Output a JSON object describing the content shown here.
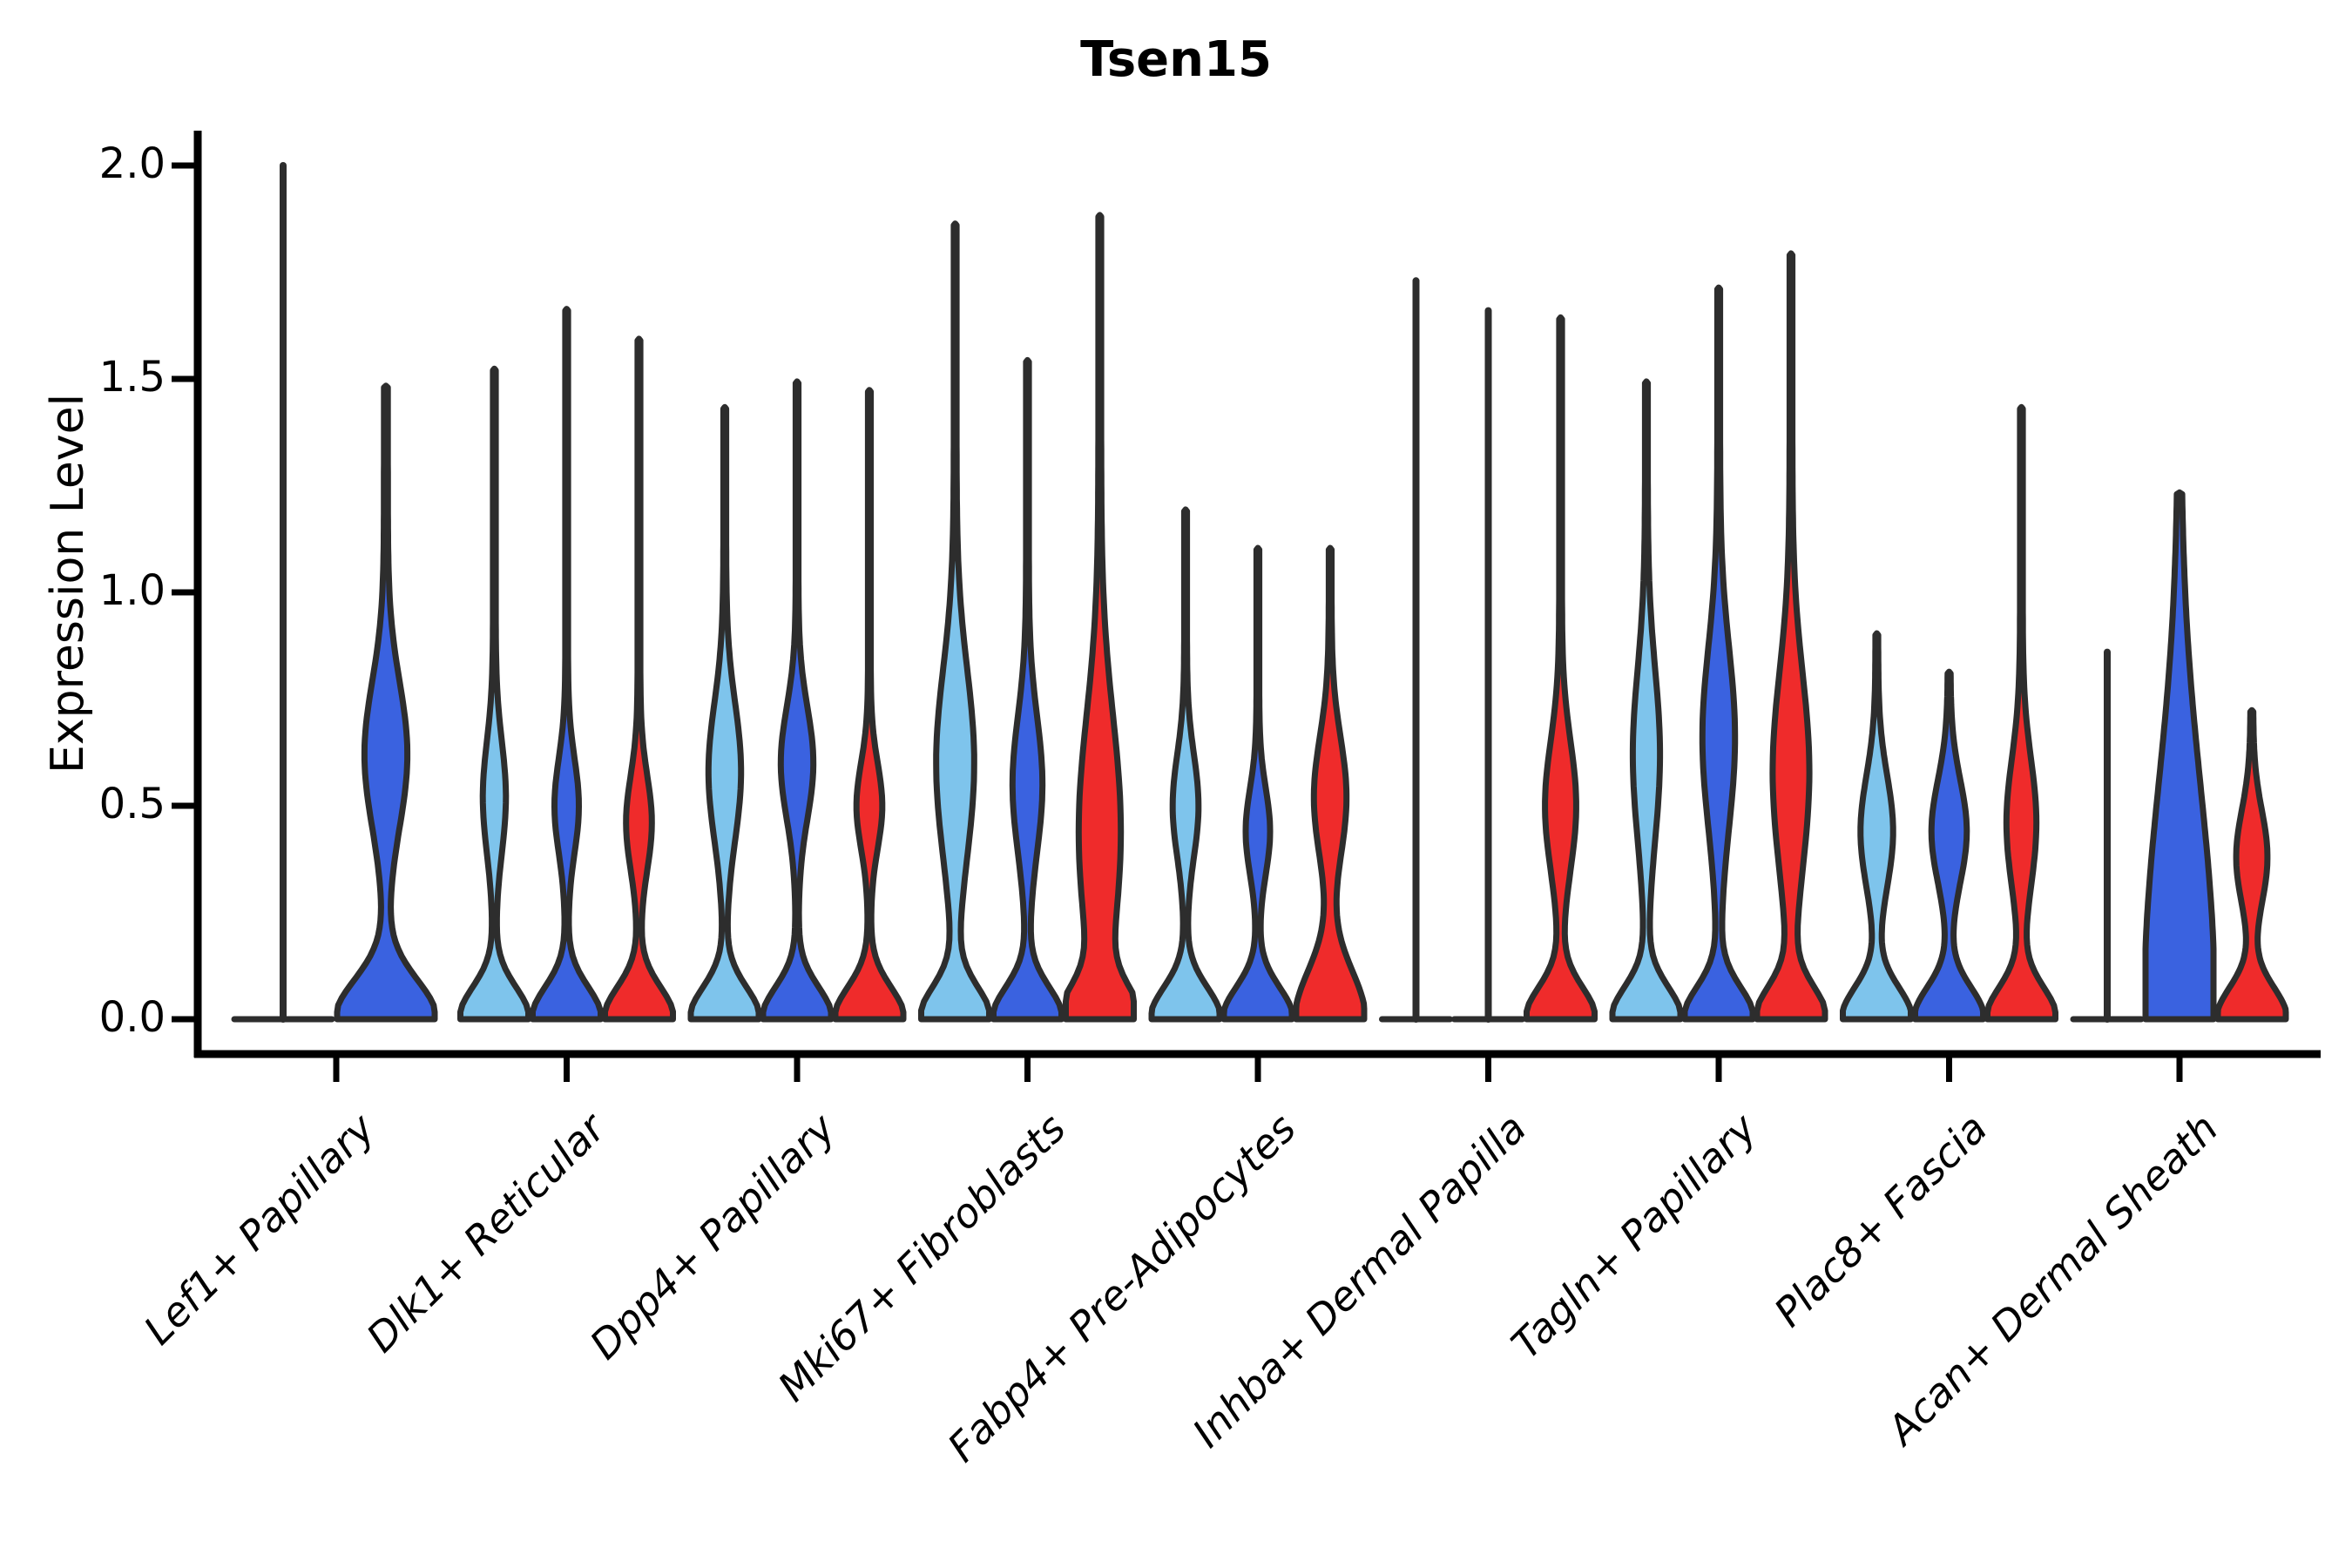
{
  "title": "Tsen15",
  "y_axis": {
    "label": "Expression Level",
    "ticks": [
      "0.0",
      "0.5",
      "1.0",
      "1.5",
      "2.0"
    ],
    "tick_values": [
      0.0,
      0.5,
      1.0,
      1.5,
      2.0
    ]
  },
  "x_axis": {
    "categories": [
      "Lef1+ Papillary",
      "Dlk1+ Reticular",
      "Dpp4+ Papillary",
      "Mki67+ Fibroblasts",
      "Fabp4+ Pre-Adipocytes",
      "Inhba+ Dermal Papilla",
      "Tagln+ Papillary",
      "Plac8+ Fascia",
      "Acan+ Dermal Sheath"
    ]
  },
  "colors": {
    "lightblue": "#7EC4EC",
    "blue": "#3A62E0",
    "red": "#EF2B2B",
    "outline": "#2D2D2D",
    "axis": "#000000"
  },
  "chart_data": {
    "type": "violin",
    "title": "Tsen15",
    "ylabel": "Expression Level",
    "ylim": [
      0,
      2.05
    ],
    "grid": false,
    "legend": "none",
    "categories": [
      "Lef1+ Papillary",
      "Dlk1+ Reticular",
      "Dpp4+ Papillary",
      "Mki67+ Fibroblasts",
      "Fabp4+ Pre-Adipocytes",
      "Inhba+ Dermal Papilla",
      "Tagln+ Papillary",
      "Plac8+ Fascia",
      "Acan+ Dermal Sheath"
    ],
    "groups": [
      {
        "category": "Lef1+ Papillary",
        "violins": [
          {
            "color": "lightblue",
            "shape": "collapsed",
            "max": 2.0,
            "offset": -61,
            "half": 56
          },
          {
            "color": "blue",
            "shape": "normal",
            "max": 1.48,
            "offset": 57,
            "half": 56,
            "mound": 0.13,
            "spindle": {
              "mu": 0.62,
              "sigma": 0.17,
              "amp": 0.4
            }
          }
        ]
      },
      {
        "category": "Dlk1+ Reticular",
        "violins": [
          {
            "color": "lightblue",
            "shape": "normal",
            "max": 1.52,
            "spindle": {
              "mu": 0.52,
              "sigma": 0.13,
              "amp": 0.3
            }
          },
          {
            "color": "blue",
            "shape": "normal",
            "max": 1.66,
            "spindle": {
              "mu": 0.5,
              "sigma": 0.11,
              "amp": 0.32
            }
          },
          {
            "color": "red",
            "shape": "normal",
            "max": 1.59,
            "spindle": {
              "mu": 0.46,
              "sigma": 0.11,
              "amp": 0.34
            }
          }
        ]
      },
      {
        "category": "Dpp4+ Papillary",
        "violins": [
          {
            "color": "lightblue",
            "shape": "normal",
            "max": 1.43,
            "spindle": {
              "mu": 0.58,
              "sigma": 0.16,
              "amp": 0.44
            }
          },
          {
            "color": "blue",
            "shape": "normal",
            "max": 1.49,
            "spindle": {
              "mu": 0.6,
              "sigma": 0.13,
              "amp": 0.44
            }
          },
          {
            "color": "red",
            "shape": "normal",
            "max": 1.47,
            "spindle": {
              "mu": 0.5,
              "sigma": 0.1,
              "amp": 0.34
            }
          }
        ]
      },
      {
        "category": "Mki67+ Fibroblasts",
        "violins": [
          {
            "color": "lightblue",
            "shape": "normal",
            "max": 1.86,
            "spindle": {
              "mu": 0.6,
              "sigma": 0.22,
              "amp": 0.52
            }
          },
          {
            "color": "blue",
            "shape": "normal",
            "max": 1.54,
            "spindle": {
              "mu": 0.55,
              "sigma": 0.16,
              "amp": 0.4
            }
          },
          {
            "color": "red",
            "shape": "normal",
            "max": 1.88,
            "spindle": {
              "mu": 0.44,
              "sigma": 0.27,
              "amp": 0.58
            }
          }
        ]
      },
      {
        "category": "Fabp4+ Pre-Adipocytes",
        "violins": [
          {
            "color": "lightblue",
            "shape": "normal",
            "max": 1.19,
            "spindle": {
              "mu": 0.5,
              "sigma": 0.12,
              "amp": 0.34
            }
          },
          {
            "color": "blue",
            "shape": "normal",
            "max": 1.1,
            "spindle": {
              "mu": 0.44,
              "sigma": 0.1,
              "amp": 0.32
            }
          },
          {
            "color": "red",
            "shape": "normal",
            "max": 1.1,
            "mound": 0.16,
            "spindle": {
              "mu": 0.52,
              "sigma": 0.14,
              "amp": 0.44
            }
          }
        ]
      },
      {
        "category": "Inhba+ Dermal Papilla",
        "violins": [
          {
            "color": "lightblue",
            "shape": "collapsed",
            "max": 1.73
          },
          {
            "color": "blue",
            "shape": "collapsed",
            "max": 1.66
          },
          {
            "color": "red",
            "shape": "normal",
            "max": 1.64,
            "spindle": {
              "mu": 0.5,
              "sigma": 0.15,
              "amp": 0.42
            }
          }
        ]
      },
      {
        "category": "Tagln+ Papillary",
        "violins": [
          {
            "color": "lightblue",
            "shape": "normal",
            "max": 1.49,
            "spindle": {
              "mu": 0.62,
              "sigma": 0.2,
              "amp": 0.36
            }
          },
          {
            "color": "blue",
            "shape": "normal",
            "max": 1.71,
            "spindle": {
              "mu": 0.66,
              "sigma": 0.21,
              "amp": 0.44
            }
          },
          {
            "color": "red",
            "shape": "normal",
            "max": 1.79,
            "spindle": {
              "mu": 0.58,
              "sigma": 0.23,
              "amp": 0.5
            }
          }
        ]
      },
      {
        "category": "Plac8+ Fascia",
        "violins": [
          {
            "color": "lightblue",
            "shape": "normal",
            "max": 0.9,
            "spindle": {
              "mu": 0.44,
              "sigma": 0.13,
              "amp": 0.44
            }
          },
          {
            "color": "blue",
            "shape": "normal",
            "max": 0.81,
            "spindle": {
              "mu": 0.44,
              "sigma": 0.12,
              "amp": 0.48
            }
          },
          {
            "color": "red",
            "shape": "normal",
            "max": 1.43,
            "spindle": {
              "mu": 0.46,
              "sigma": 0.15,
              "amp": 0.4
            }
          }
        ]
      },
      {
        "category": "Acan+ Dermal Sheath",
        "violins": [
          {
            "color": "lightblue",
            "shape": "collapsed",
            "max": 0.86
          },
          {
            "color": "blue",
            "shape": "sail",
            "max": 1.23
          },
          {
            "color": "red",
            "shape": "normal",
            "max": 0.72,
            "spindle": {
              "mu": 0.38,
              "sigma": 0.11,
              "amp": 0.42
            }
          }
        ]
      }
    ]
  }
}
